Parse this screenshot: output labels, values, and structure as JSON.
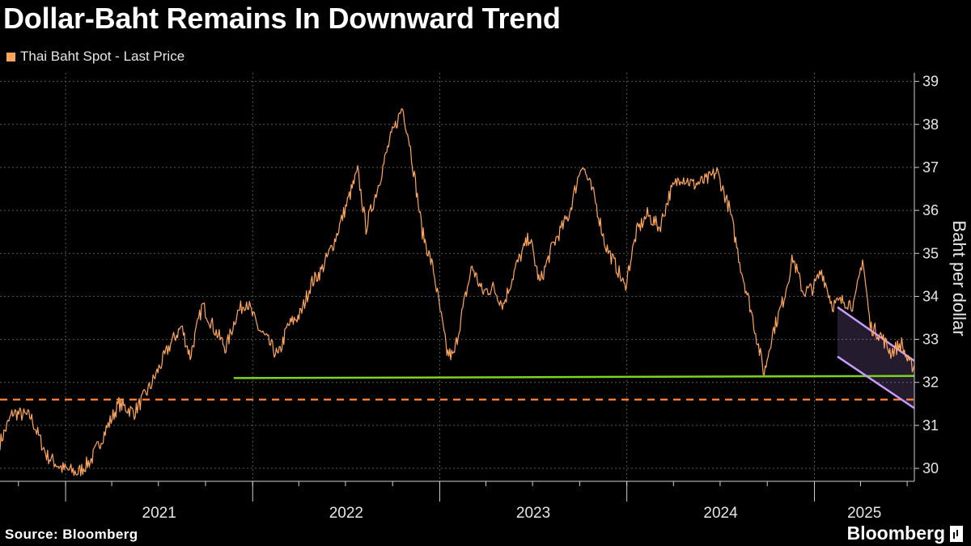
{
  "title": "Dollar-Baht Remains In Downward Trend",
  "legend": {
    "label": "Thai Baht Spot - Last Price"
  },
  "source": "Source: Bloomberg",
  "brand": "Bloomberg",
  "colors": {
    "series": "#ffa65c",
    "support_line": "#7ed321",
    "dashed_line": "#ff7a33",
    "channel": "#c79bff",
    "grid": "#5a5a5a"
  },
  "chart_data": {
    "type": "line",
    "ylabel": "Baht per dollar",
    "ylim": [
      29.7,
      39.2
    ],
    "y_ticks": [
      30,
      31,
      32,
      33,
      34,
      35,
      36,
      37,
      38,
      39
    ],
    "x_range": [
      "2020-08-26",
      "2025-07-15"
    ],
    "x_ticks": [
      "2021",
      "2022",
      "2023",
      "2024",
      "2025"
    ],
    "grid": true,
    "legend_position": "top-left",
    "series": [
      {
        "name": "Thai Baht Spot - Last Price",
        "points": [
          [
            "2020-08-26",
            30.6
          ],
          [
            "2020-09-20",
            31.3
          ],
          [
            "2020-10-25",
            31.2
          ],
          [
            "2020-11-25",
            30.3
          ],
          [
            "2020-12-25",
            30.0
          ],
          [
            "2021-01-25",
            29.9
          ],
          [
            "2021-02-20",
            30.2
          ],
          [
            "2021-03-25",
            31.0
          ],
          [
            "2021-04-15",
            31.5
          ],
          [
            "2021-05-15",
            31.3
          ],
          [
            "2021-06-15",
            31.9
          ],
          [
            "2021-07-25",
            32.9
          ],
          [
            "2021-08-15",
            33.3
          ],
          [
            "2021-09-01",
            32.6
          ],
          [
            "2021-09-25",
            33.8
          ],
          [
            "2021-10-20",
            33.2
          ],
          [
            "2021-11-10",
            32.8
          ],
          [
            "2021-12-01",
            33.6
          ],
          [
            "2021-12-20",
            33.9
          ],
          [
            "2022-01-10",
            33.3
          ],
          [
            "2022-01-28",
            33.0
          ],
          [
            "2022-02-20",
            32.6
          ],
          [
            "2022-03-10",
            33.3
          ],
          [
            "2022-04-05",
            33.6
          ],
          [
            "2022-04-25",
            34.3
          ],
          [
            "2022-05-15",
            34.6
          ],
          [
            "2022-06-10",
            35.3
          ],
          [
            "2022-07-05",
            36.2
          ],
          [
            "2022-07-25",
            36.9
          ],
          [
            "2022-08-10",
            35.6
          ],
          [
            "2022-09-01",
            36.5
          ],
          [
            "2022-09-25",
            37.6
          ],
          [
            "2022-10-20",
            38.4
          ],
          [
            "2022-11-03",
            37.6
          ],
          [
            "2022-11-28",
            35.5
          ],
          [
            "2022-12-20",
            34.6
          ],
          [
            "2023-01-15",
            32.7
          ],
          [
            "2023-01-28",
            32.6
          ],
          [
            "2023-02-15",
            33.7
          ],
          [
            "2023-03-05",
            34.7
          ],
          [
            "2023-03-25",
            34.1
          ],
          [
            "2023-04-15",
            34.2
          ],
          [
            "2023-05-05",
            33.8
          ],
          [
            "2023-05-30",
            34.7
          ],
          [
            "2023-06-25",
            35.4
          ],
          [
            "2023-07-15",
            34.3
          ],
          [
            "2023-08-10",
            35.2
          ],
          [
            "2023-09-10",
            35.9
          ],
          [
            "2023-10-05",
            37.1
          ],
          [
            "2023-10-30",
            36.3
          ],
          [
            "2023-11-20",
            35.2
          ],
          [
            "2023-12-15",
            34.6
          ],
          [
            "2023-12-28",
            34.2
          ],
          [
            "2024-01-20",
            35.5
          ],
          [
            "2024-02-10",
            35.9
          ],
          [
            "2024-03-05",
            35.6
          ],
          [
            "2024-03-25",
            36.4
          ],
          [
            "2024-04-15",
            36.8
          ],
          [
            "2024-05-10",
            36.6
          ],
          [
            "2024-06-05",
            36.7
          ],
          [
            "2024-06-25",
            36.9
          ],
          [
            "2024-07-20",
            36.0
          ],
          [
            "2024-08-10",
            34.7
          ],
          [
            "2024-08-30",
            33.7
          ],
          [
            "2024-09-25",
            32.2
          ],
          [
            "2024-10-10",
            33.1
          ],
          [
            "2024-11-01",
            33.9
          ],
          [
            "2024-11-20",
            34.9
          ],
          [
            "2024-12-10",
            34.1
          ],
          [
            "2024-12-30",
            34.2
          ],
          [
            "2025-01-15",
            34.6
          ],
          [
            "2025-02-05",
            33.8
          ],
          [
            "2025-02-28",
            33.9
          ],
          [
            "2025-03-20",
            33.8
          ],
          [
            "2025-04-05",
            34.9
          ],
          [
            "2025-04-20",
            33.3
          ],
          [
            "2025-05-10",
            33.1
          ],
          [
            "2025-05-30",
            32.7
          ],
          [
            "2025-06-20",
            32.9
          ],
          [
            "2025-07-05",
            32.4
          ],
          [
            "2025-07-15",
            32.4
          ]
        ]
      }
    ],
    "annotations": [
      {
        "type": "support_line",
        "start": [
          "2021-11-25",
          32.1
        ],
        "end": [
          "2025-07-15",
          32.15
        ]
      },
      {
        "type": "dashed_line",
        "start": [
          "2020-08-26",
          31.6
        ],
        "end": [
          "2025-07-15",
          31.6
        ]
      },
      {
        "type": "downtrend_channel_upper",
        "start": [
          "2025-02-15",
          33.75
        ],
        "end": [
          "2025-07-15",
          32.5
        ]
      },
      {
        "type": "downtrend_channel_lower",
        "start": [
          "2025-02-15",
          32.6
        ],
        "end": [
          "2025-07-15",
          31.4
        ]
      }
    ]
  }
}
